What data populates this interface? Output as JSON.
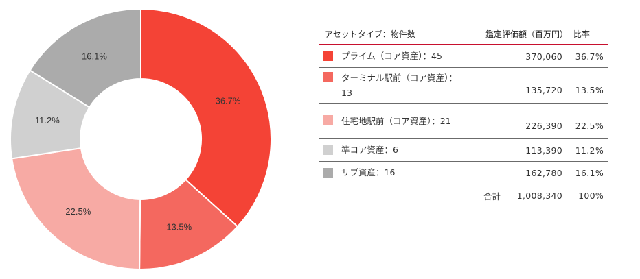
{
  "chart_data": {
    "type": "pie",
    "variant": "donut",
    "start": "12 o'clock, clockwise",
    "slices": [
      {
        "label": "プライム（コア資産）：45",
        "value": 370060,
        "percent_label": "36.7%",
        "color": "#f44336"
      },
      {
        "label": "ターミナル駅前（コア資産）：13",
        "value": 135720,
        "percent_label": "13.5%",
        "color": "#f4685f"
      },
      {
        "label": "住宅地駅前（コア資産）：21",
        "value": 226390,
        "percent_label": "22.5%",
        "color": "#f7aaa4"
      },
      {
        "label": "準コア資産：6",
        "value": 113390,
        "percent_label": "11.2%",
        "color": "#d0d0d0"
      },
      {
        "label": "サブ資産：16",
        "value": 162780,
        "percent_label": "16.1%",
        "color": "#ababab"
      }
    ]
  },
  "table": {
    "header": {
      "type": "アセットタイプ：物件数",
      "value": "鑑定評価額（百万円）",
      "ratio": "比率"
    },
    "rows": [
      {
        "label": "プライム（コア資産）：45",
        "value": "370,060",
        "ratio": "36.7%"
      },
      {
        "label": "ターミナル駅前（コア資産）：13",
        "value": "135,720",
        "ratio": "13.5%"
      },
      {
        "label": "住宅地駅前（コア資産）：21",
        "value": "226,390",
        "ratio": "22.5%"
      },
      {
        "label": "準コア資産：6",
        "value": "113,390",
        "ratio": "11.2%"
      },
      {
        "label": "サブ資産：16",
        "value": "162,780",
        "ratio": "16.1%"
      }
    ],
    "total": {
      "label": "合計",
      "value": "1,008,340",
      "ratio": "100%"
    }
  }
}
